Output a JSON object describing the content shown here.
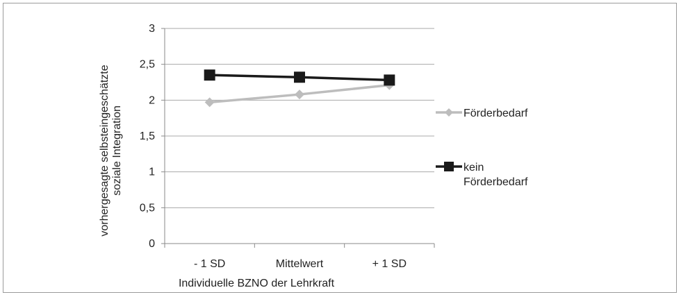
{
  "chart_data": {
    "type": "line",
    "categories": [
      "- 1 SD",
      "Mittelwert",
      "+ 1 SD"
    ],
    "series": [
      {
        "name": "Förderbedarf",
        "values": [
          1.97,
          2.08,
          2.21
        ],
        "color": "#bdbdbd",
        "marker": "diamond"
      },
      {
        "name_lines": [
          "kein",
          "Förderbedarf"
        ],
        "values": [
          2.35,
          2.32,
          2.28
        ],
        "color": "#1a1a1a",
        "marker": "square"
      }
    ],
    "y_ticks": [
      "0",
      "0,5",
      "1",
      "1,5",
      "2",
      "2,5",
      "3"
    ],
    "ylim": [
      0,
      3
    ],
    "xlabel": "Individuelle BZNO der Lehrkraft",
    "ylabel_lines": [
      "vorhergesagte selbsteingeschätzte",
      "soziale Integration"
    ],
    "grid": true,
    "legend_position": "right"
  }
}
